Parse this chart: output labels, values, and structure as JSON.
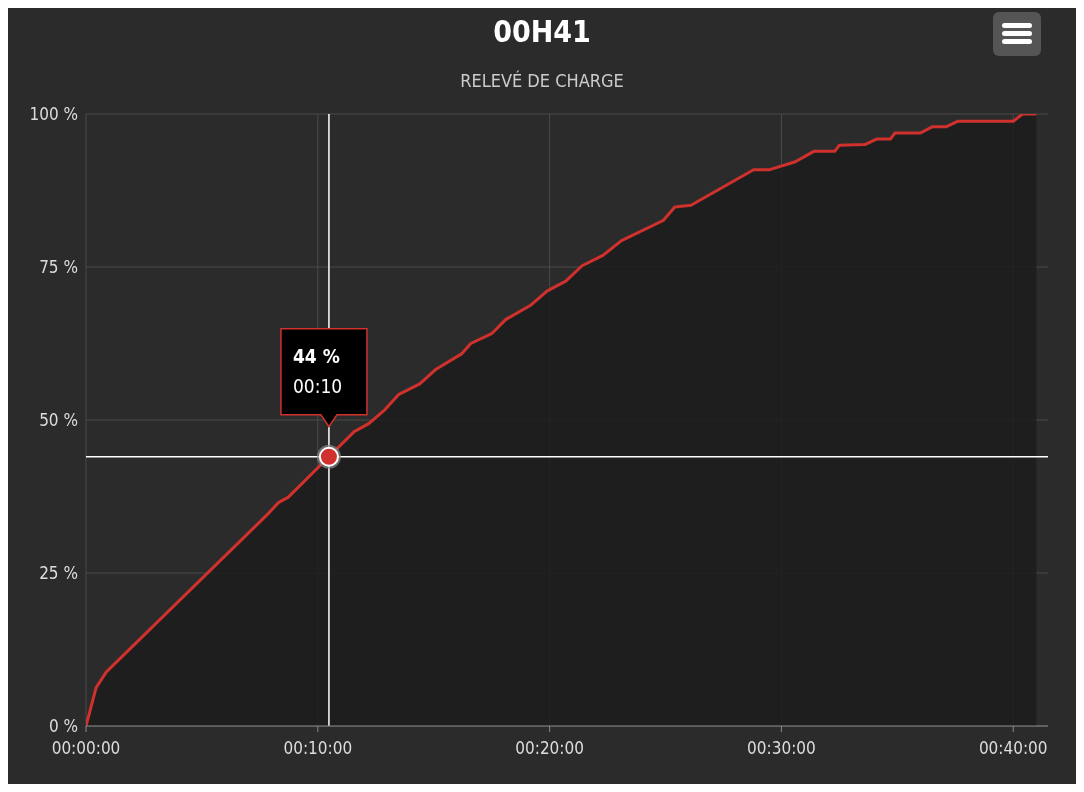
{
  "chart_data": {
    "type": "area",
    "title": "00H41",
    "subtitle": "RELEVÉ DE CHARGE",
    "x": [
      0,
      0.44,
      0.87,
      7.86,
      8.3,
      8.73,
      10.48,
      11.57,
      12.2,
      12.9,
      13.5,
      14.4,
      15.1,
      16.2,
      16.6,
      17.5,
      18.1,
      19.2,
      19.9,
      20.7,
      21.4,
      22.3,
      23.1,
      24.9,
      25.4,
      26.1,
      28.8,
      29.5,
      30.6,
      31.4,
      32.3,
      32.5,
      33.6,
      34.1,
      34.7,
      34.9,
      36.0,
      36.5,
      37.1,
      37.6,
      40.0,
      40.4,
      41.0
    ],
    "series": [
      {
        "color": "#d0312d",
        "values": [
          0,
          6.3,
          8.8,
          34.7,
          36.5,
          37.4,
          44,
          48.1,
          49.4,
          51.7,
          54.2,
          55.9,
          58.3,
          60.8,
          62.5,
          64.1,
          66.4,
          68.8,
          71.1,
          72.7,
          75.2,
          76.9,
          79.3,
          82.6,
          84.8,
          85.1,
          90.9,
          90.9,
          92.2,
          93.9,
          93.9,
          94.9,
          95,
          95.9,
          95.9,
          96.9,
          96.9,
          97.9,
          97.9,
          98.8,
          98.8,
          100,
          100
        ]
      }
    ],
    "xlim": [
      0,
      41.5
    ],
    "xticks": [
      {
        "value": 0,
        "label": "00:00:00"
      },
      {
        "value": 10,
        "label": "00:10:00"
      },
      {
        "value": 20,
        "label": "00:20:00"
      },
      {
        "value": 30,
        "label": "00:30:00"
      },
      {
        "value": 40,
        "label": "00:40:00"
      }
    ],
    "ylim": [
      0,
      100
    ],
    "yticks": [
      {
        "value": 0,
        "label": "0 %"
      },
      {
        "value": 25,
        "label": "25 %"
      },
      {
        "value": 50,
        "label": "50 %"
      },
      {
        "value": 75,
        "label": "75 %"
      },
      {
        "value": 100,
        "label": "100 %"
      }
    ],
    "grid": true,
    "legend": false,
    "ref_lines": [
      {
        "axis": "x",
        "value": 10.48,
        "color": "#ffffff"
      },
      {
        "axis": "y",
        "value": 44,
        "color": "#ffffff"
      }
    ],
    "annotations": [
      "44 %\n00:10"
    ]
  }
}
